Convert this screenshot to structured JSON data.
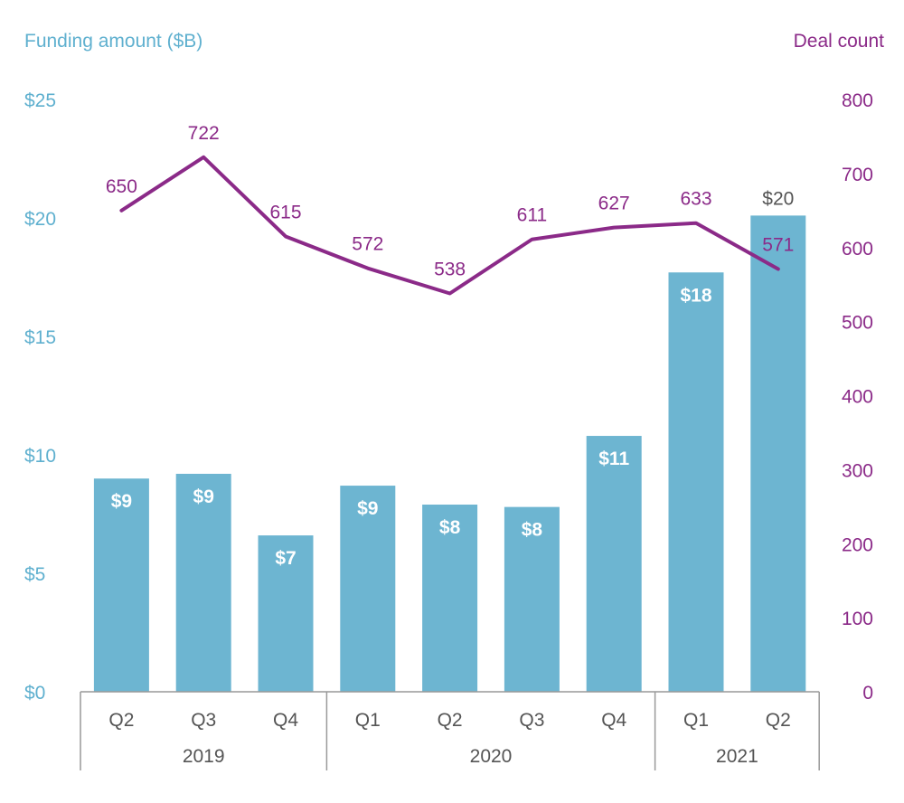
{
  "colors": {
    "bar": "#6db5d1",
    "line": "#8b2a88",
    "left_axis": "#5fb0cf",
    "right_axis": "#8b2a88",
    "axis_text": "#555555",
    "outside_bar_label": "#555555"
  },
  "chart_data": {
    "type": "bar",
    "title": "",
    "left_axis": {
      "title": "Funding amount ($B)",
      "ylim": [
        0,
        25
      ],
      "ticks": [
        0,
        5,
        10,
        15,
        20,
        25
      ],
      "tick_labels": [
        "$0",
        "$5",
        "$10",
        "$15",
        "$20",
        "$25"
      ]
    },
    "right_axis": {
      "title": "Deal count",
      "ylim": [
        0,
        800
      ],
      "ticks": [
        0,
        100,
        200,
        300,
        400,
        500,
        600,
        700,
        800
      ],
      "tick_labels": [
        "0",
        "100",
        "200",
        "300",
        "400",
        "500",
        "600",
        "700",
        "800"
      ]
    },
    "categories": [
      "Q2",
      "Q3",
      "Q4",
      "Q1",
      "Q2",
      "Q3",
      "Q4",
      "Q1",
      "Q2"
    ],
    "year_groups": [
      {
        "label": "2019",
        "start": 0,
        "end": 2
      },
      {
        "label": "2020",
        "start": 3,
        "end": 6
      },
      {
        "label": "2021",
        "start": 7,
        "end": 8
      }
    ],
    "series": [
      {
        "name": "Funding amount ($B)",
        "type": "bar",
        "axis": "left",
        "values": [
          9.0,
          9.2,
          6.6,
          8.7,
          7.9,
          7.8,
          10.8,
          17.7,
          20.1
        ],
        "labels": [
          "$9",
          "$9",
          "$7",
          "$9",
          "$8",
          "$8",
          "$11",
          "$18",
          "$20"
        ]
      },
      {
        "name": "Deal count",
        "type": "line",
        "axis": "right",
        "values": [
          650,
          722,
          615,
          572,
          538,
          611,
          627,
          633,
          571
        ],
        "labels": [
          "650",
          "722",
          "615",
          "572",
          "538",
          "611",
          "627",
          "633",
          "571"
        ]
      }
    ]
  }
}
